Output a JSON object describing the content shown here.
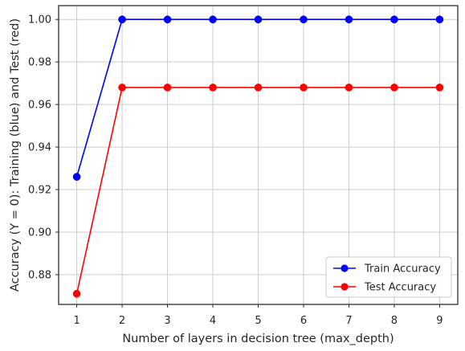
{
  "chart_data": {
    "type": "line",
    "title": "",
    "xlabel": "Number of layers in decision tree (max_depth)",
    "ylabel": "Accuracy (Y = 0): Training (blue) and Test (red)",
    "x": [
      1,
      2,
      3,
      4,
      5,
      6,
      7,
      8,
      9
    ],
    "xlim": [
      0.6,
      9.4
    ],
    "ylim": [
      0.866,
      1.0065
    ],
    "xticks": [
      "1",
      "2",
      "3",
      "4",
      "5",
      "6",
      "7",
      "8",
      "9"
    ],
    "yticks": [
      "0.88",
      "0.90",
      "0.92",
      "0.94",
      "0.96",
      "0.98",
      "1.00"
    ],
    "ytick_values": [
      0.88,
      0.9,
      0.92,
      0.94,
      0.96,
      0.98,
      1.0
    ],
    "grid": true,
    "legend_position": "bottom-right",
    "series": [
      {
        "name": "Train Accuracy",
        "color": "#0000ff",
        "marker": "circle",
        "values": [
          0.926,
          1.0,
          1.0,
          1.0,
          1.0,
          1.0,
          1.0,
          1.0,
          1.0
        ]
      },
      {
        "name": "Test Accuracy",
        "color": "#ff0000",
        "marker": "circle",
        "values": [
          0.871,
          0.968,
          0.968,
          0.968,
          0.968,
          0.968,
          0.968,
          0.968,
          0.968
        ]
      }
    ]
  }
}
